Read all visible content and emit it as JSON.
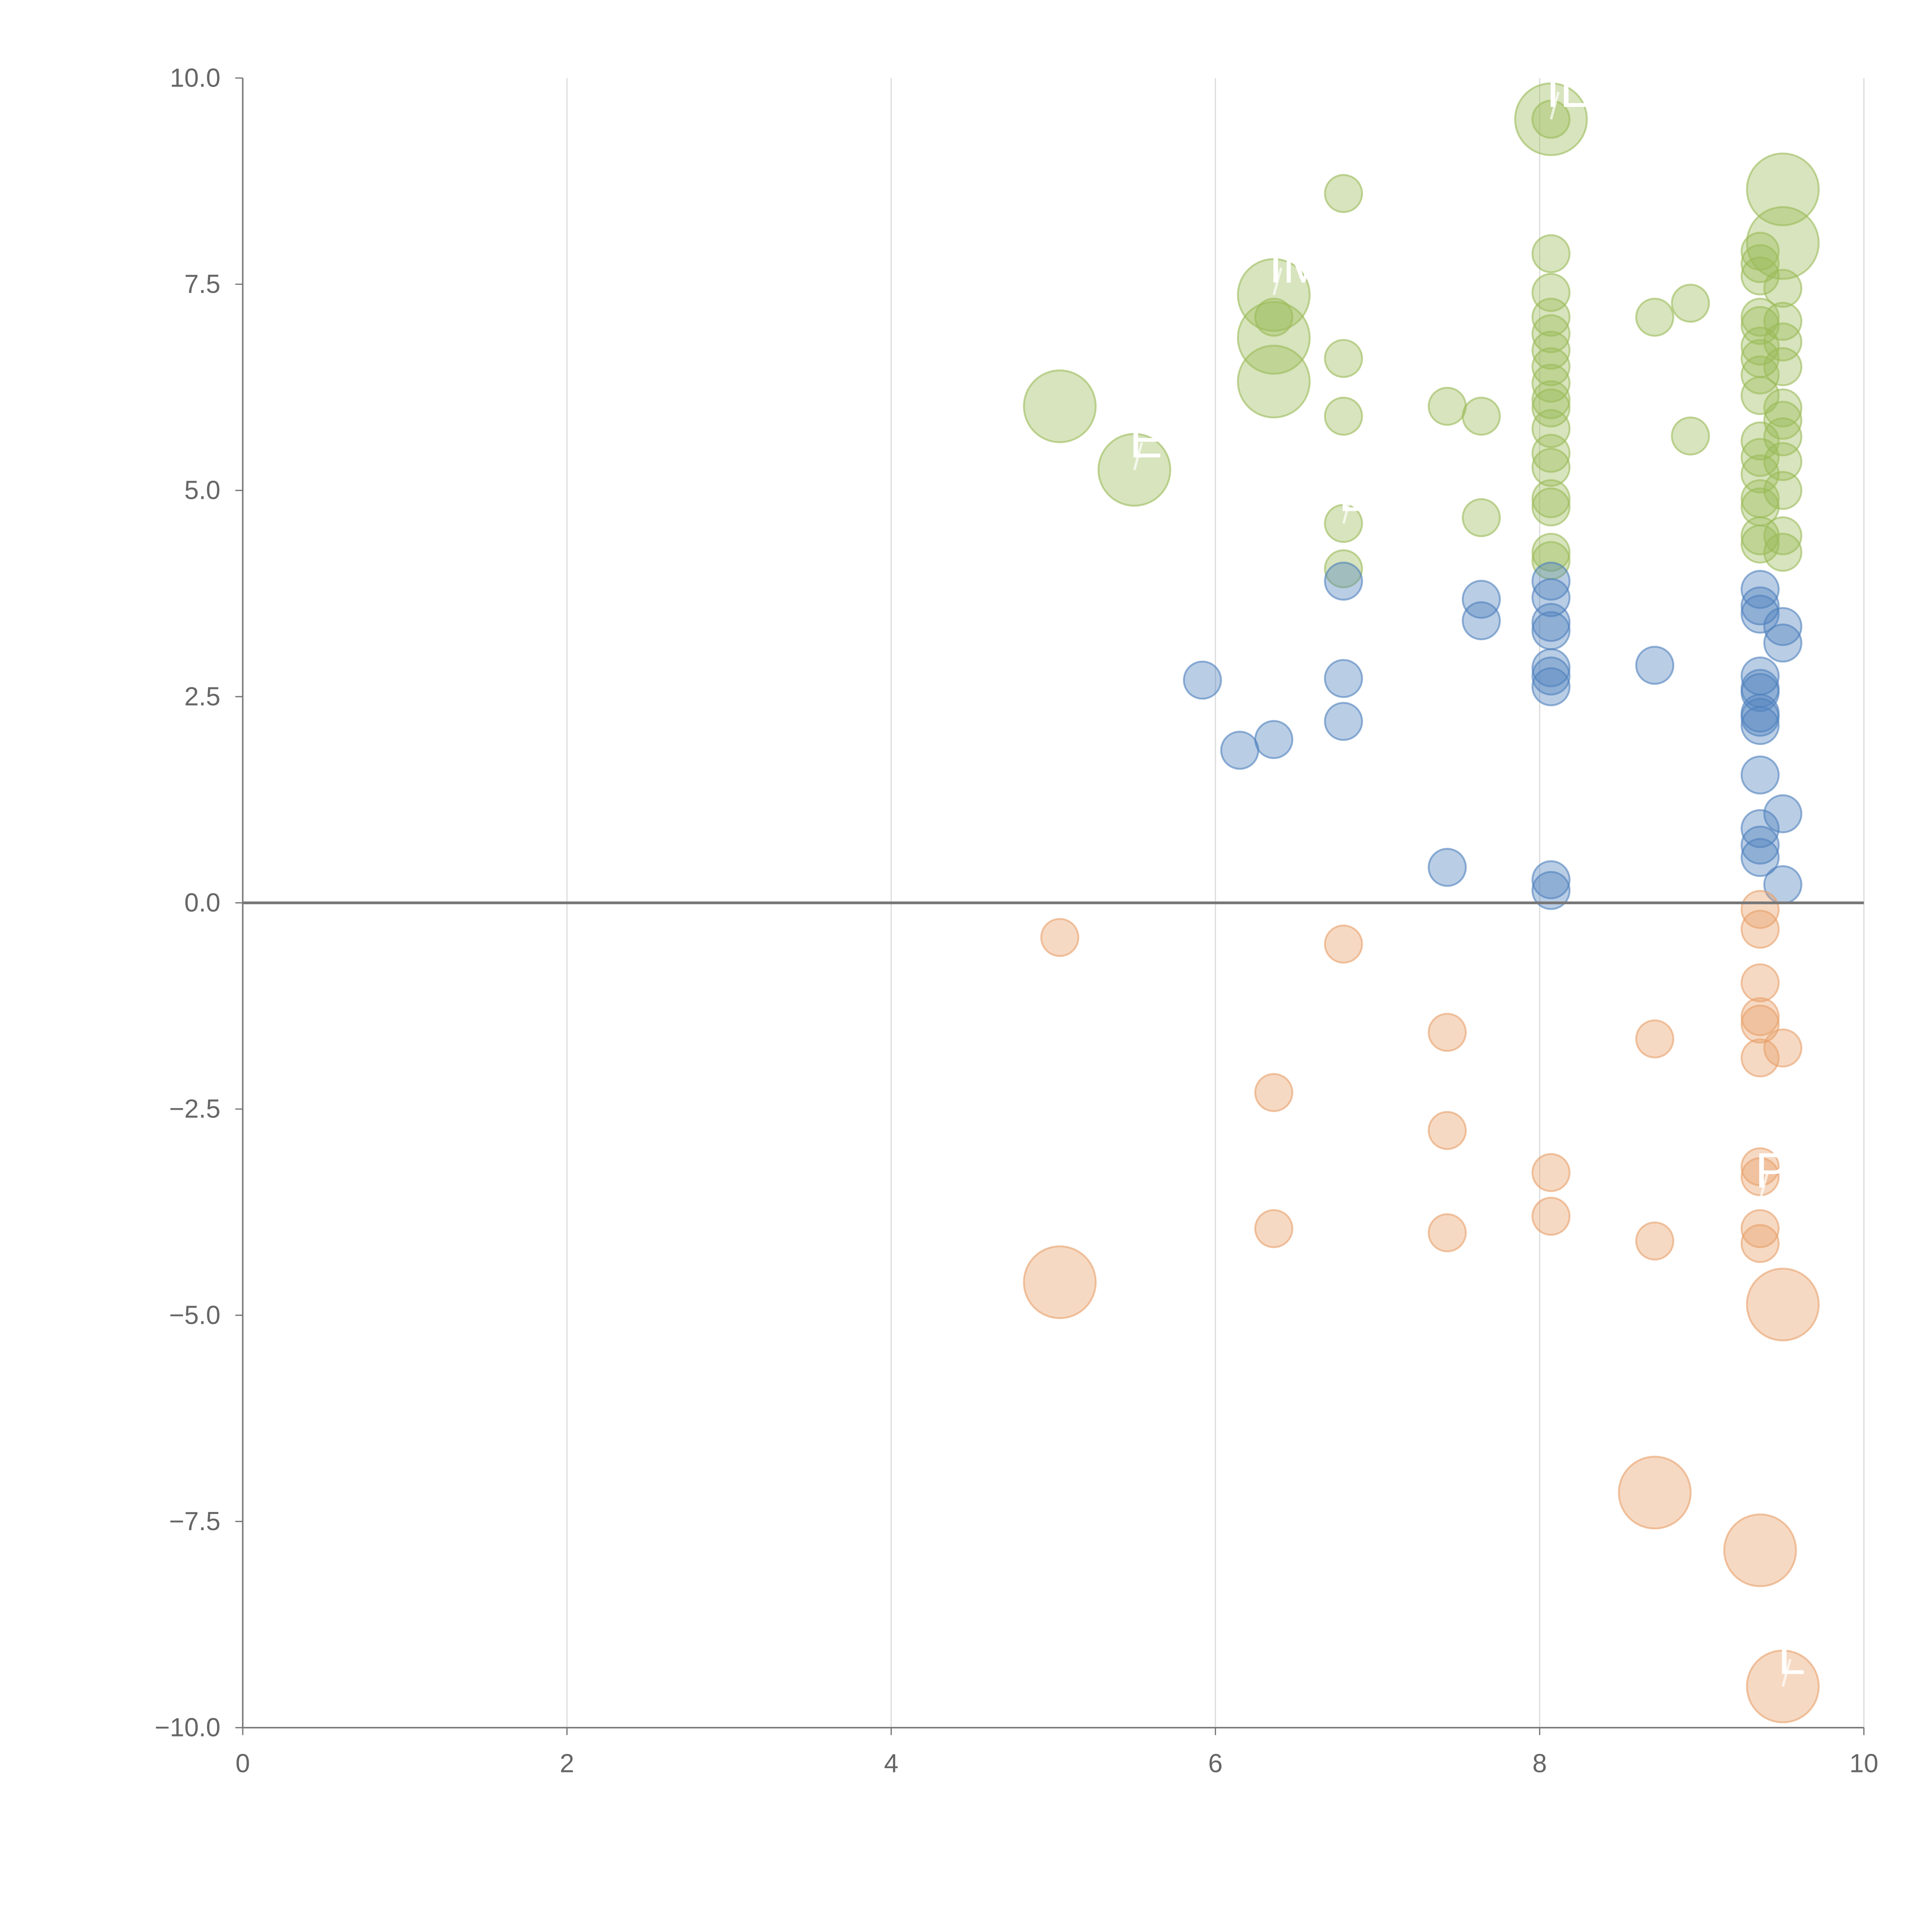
{
  "chart_data": {
    "type": "scatter",
    "title": "",
    "xlabel": "",
    "ylabel": "",
    "xlim": [
      0,
      10
    ],
    "ylim": [
      -10,
      10
    ],
    "xticks": [
      "0",
      "2",
      "4",
      "6",
      "8",
      "10"
    ],
    "xtick_values": [
      0,
      2,
      4,
      6,
      8,
      10
    ],
    "yticks": [
      "10.0",
      "7.5",
      "5.0",
      "2.5",
      "0.0",
      "−2.5",
      "−5.0",
      "−7.5",
      "−10.0"
    ],
    "ytick_values": [
      10,
      7.5,
      5,
      2.5,
      0,
      -2.5,
      -5,
      -7.5,
      -10
    ],
    "grid": "vertical",
    "legend": "none",
    "series": [
      {
        "name": "green",
        "color": "#9bbb59",
        "points": [
          [
            5.04,
            6.02,
            2
          ],
          [
            5.5,
            5.25,
            2
          ],
          [
            6.36,
            7.37,
            2
          ],
          [
            6.36,
            6.85,
            2
          ],
          [
            6.36,
            6.32,
            2
          ],
          [
            8.07,
            9.5,
            2
          ],
          [
            9.5,
            8.65,
            2
          ],
          [
            9.5,
            8.0,
            2
          ],
          [
            6.79,
            8.6,
            1
          ],
          [
            6.36,
            7.1,
            1
          ],
          [
            6.79,
            6.6,
            1
          ],
          [
            6.79,
            5.9,
            1
          ],
          [
            6.79,
            4.6,
            1
          ],
          [
            6.79,
            4.05,
            1
          ],
          [
            7.43,
            6.02,
            1
          ],
          [
            7.64,
            5.9,
            1
          ],
          [
            7.64,
            4.67,
            1
          ],
          [
            8.07,
            9.5,
            1
          ],
          [
            8.07,
            7.87,
            1
          ],
          [
            8.07,
            7.4,
            1
          ],
          [
            8.07,
            7.1,
            1
          ],
          [
            8.07,
            6.9,
            1
          ],
          [
            8.07,
            6.7,
            1
          ],
          [
            8.07,
            6.5,
            1
          ],
          [
            8.07,
            6.3,
            1
          ],
          [
            8.07,
            6.1,
            1
          ],
          [
            8.07,
            6.0,
            1
          ],
          [
            8.07,
            5.75,
            1
          ],
          [
            8.07,
            5.45,
            1
          ],
          [
            8.07,
            5.28,
            1
          ],
          [
            8.07,
            4.9,
            1
          ],
          [
            8.07,
            4.8,
            1
          ],
          [
            8.07,
            4.25,
            1
          ],
          [
            8.07,
            4.15,
            1
          ],
          [
            8.71,
            7.1,
            1
          ],
          [
            8.93,
            7.27,
            1
          ],
          [
            8.93,
            5.66,
            1
          ],
          [
            9.36,
            7.9,
            1
          ],
          [
            9.36,
            7.75,
            1
          ],
          [
            9.36,
            7.6,
            1
          ],
          [
            9.36,
            7.1,
            1
          ],
          [
            9.36,
            7.0,
            1
          ],
          [
            9.36,
            6.75,
            1
          ],
          [
            9.36,
            6.6,
            1
          ],
          [
            9.36,
            6.4,
            1
          ],
          [
            9.36,
            6.15,
            1
          ],
          [
            9.36,
            5.6,
            1
          ],
          [
            9.36,
            5.4,
            1
          ],
          [
            9.36,
            5.2,
            1
          ],
          [
            9.36,
            4.9,
            1
          ],
          [
            9.36,
            4.8,
            1
          ],
          [
            9.36,
            4.45,
            1
          ],
          [
            9.36,
            4.35,
            1
          ],
          [
            9.5,
            7.45,
            1
          ],
          [
            9.5,
            7.05,
            1
          ],
          [
            9.5,
            6.8,
            1
          ],
          [
            9.5,
            6.5,
            1
          ],
          [
            9.5,
            6.0,
            1
          ],
          [
            9.5,
            5.85,
            1
          ],
          [
            9.5,
            5.65,
            1
          ],
          [
            9.5,
            5.35,
            1
          ],
          [
            9.5,
            5.0,
            1
          ],
          [
            9.5,
            4.45,
            1
          ],
          [
            9.5,
            4.25,
            1
          ]
        ]
      },
      {
        "name": "blue",
        "color": "#4f81bd",
        "points": [
          [
            5.92,
            2.7,
            1
          ],
          [
            6.15,
            1.85,
            1
          ],
          [
            6.36,
            1.98,
            1
          ],
          [
            6.79,
            3.9,
            1
          ],
          [
            6.79,
            2.72,
            1
          ],
          [
            6.79,
            2.2,
            1
          ],
          [
            7.43,
            0.43,
            1
          ],
          [
            7.64,
            3.68,
            1
          ],
          [
            7.64,
            3.42,
            1
          ],
          [
            8.07,
            3.9,
            1
          ],
          [
            8.07,
            3.7,
            1
          ],
          [
            8.07,
            3.4,
            1
          ],
          [
            8.07,
            3.3,
            1
          ],
          [
            8.07,
            2.85,
            1
          ],
          [
            8.07,
            2.75,
            1
          ],
          [
            8.07,
            2.62,
            1
          ],
          [
            8.07,
            0.28,
            1
          ],
          [
            8.07,
            0.15,
            1
          ],
          [
            8.71,
            2.88,
            1
          ],
          [
            9.36,
            3.8,
            1
          ],
          [
            9.36,
            3.6,
            1
          ],
          [
            9.36,
            3.5,
            1
          ],
          [
            9.36,
            2.75,
            1
          ],
          [
            9.36,
            2.6,
            1
          ],
          [
            9.36,
            2.55,
            1
          ],
          [
            9.36,
            2.3,
            1
          ],
          [
            9.36,
            2.25,
            1
          ],
          [
            9.36,
            2.15,
            1
          ],
          [
            9.36,
            1.55,
            1
          ],
          [
            9.36,
            0.9,
            1
          ],
          [
            9.36,
            0.7,
            1
          ],
          [
            9.36,
            0.55,
            1
          ],
          [
            9.5,
            3.35,
            1
          ],
          [
            9.5,
            3.15,
            1
          ],
          [
            9.5,
            1.08,
            1
          ],
          [
            9.5,
            0.22,
            1
          ]
        ]
      },
      {
        "name": "orange",
        "color": "#e8a06a",
        "points": [
          [
            5.04,
            -0.42,
            1
          ],
          [
            6.36,
            -2.3,
            1
          ],
          [
            6.36,
            -3.95,
            1
          ],
          [
            6.79,
            -0.5,
            1
          ],
          [
            7.43,
            -1.57,
            1
          ],
          [
            7.43,
            -2.76,
            1
          ],
          [
            7.43,
            -4.0,
            1
          ],
          [
            8.07,
            -3.27,
            1
          ],
          [
            8.07,
            -3.8,
            1
          ],
          [
            8.71,
            -1.65,
            1
          ],
          [
            8.71,
            -4.1,
            1
          ],
          [
            9.36,
            -0.08,
            1
          ],
          [
            9.36,
            -0.32,
            1
          ],
          [
            9.36,
            -0.97,
            1
          ],
          [
            9.36,
            -1.38,
            1
          ],
          [
            9.36,
            -1.47,
            1
          ],
          [
            9.36,
            -1.88,
            1
          ],
          [
            9.36,
            -3.2,
            1
          ],
          [
            9.36,
            -3.32,
            1
          ],
          [
            9.36,
            -3.95,
            1
          ],
          [
            9.36,
            -4.13,
            1
          ],
          [
            9.5,
            -1.76,
            1
          ],
          [
            5.04,
            -4.6,
            2
          ],
          [
            9.5,
            -4.87,
            2
          ],
          [
            8.71,
            -7.15,
            2
          ],
          [
            9.36,
            -7.85,
            2
          ],
          [
            9.5,
            -9.5,
            2
          ]
        ]
      }
    ],
    "annotations": [
      {
        "text": "IL",
        "x": 8.07,
        "y": 9.5
      },
      {
        "text": "IM",
        "x": 6.36,
        "y": 7.37
      },
      {
        "text": "E",
        "x": 5.5,
        "y": 5.25
      },
      {
        "text": "D",
        "x": 6.79,
        "y": 4.6
      },
      {
        "text": "P",
        "x": 9.36,
        "y": -3.6
      },
      {
        "text": "L",
        "x": 9.5,
        "y": -9.5
      }
    ]
  }
}
